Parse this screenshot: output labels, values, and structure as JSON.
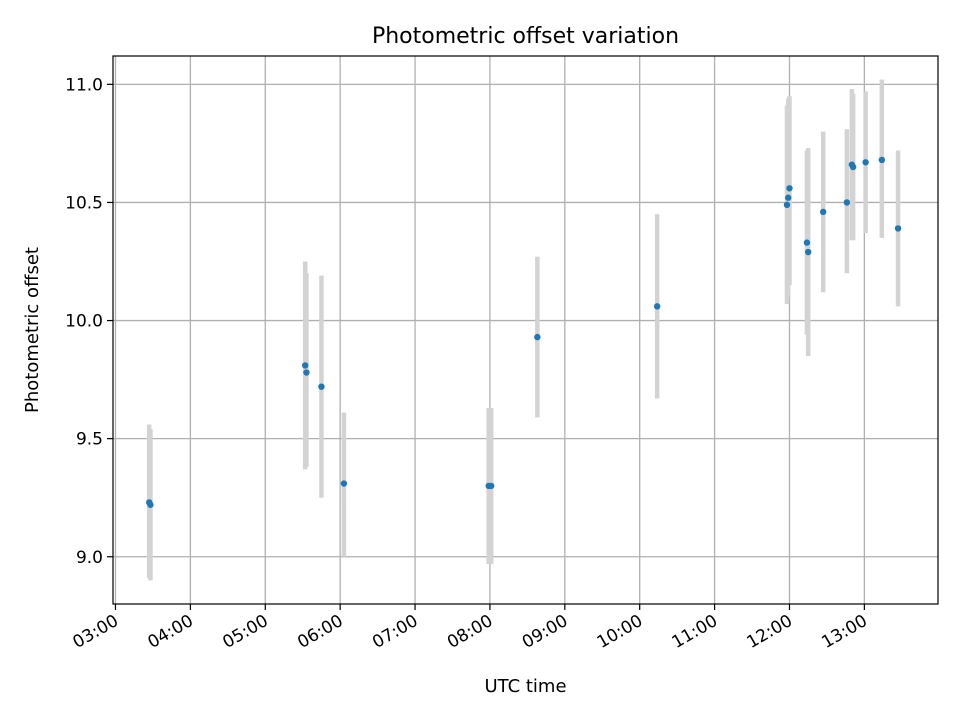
{
  "chart_data": {
    "type": "scatter",
    "title": "Photometric offset variation",
    "xlabel": "UTC time",
    "ylabel": "Photometric offset",
    "xlim": [
      "02:58",
      "13:59"
    ],
    "ylim": [
      8.8,
      11.12
    ],
    "x_ticks": [
      "03:00",
      "04:00",
      "05:00",
      "06:00",
      "07:00",
      "08:00",
      "09:00",
      "10:00",
      "11:00",
      "12:00",
      "13:00"
    ],
    "y_ticks": [
      "9.0",
      "9.5",
      "10.0",
      "10.5",
      "11.0"
    ],
    "grid": true,
    "marker_color": "#1f77b4",
    "errorbar_color": "#d3d3d3",
    "points": [
      {
        "time": "03:27",
        "y": 9.23,
        "lo": 8.91,
        "hi": 9.56
      },
      {
        "time": "03:28",
        "y": 9.22,
        "lo": 8.9,
        "hi": 9.54
      },
      {
        "time": "05:32",
        "y": 9.81,
        "lo": 9.37,
        "hi": 10.25
      },
      {
        "time": "05:33",
        "y": 9.78,
        "lo": 9.38,
        "hi": 10.2
      },
      {
        "time": "05:45",
        "y": 9.72,
        "lo": 9.25,
        "hi": 10.19
      },
      {
        "time": "06:03",
        "y": 9.31,
        "lo": 9.0,
        "hi": 9.61
      },
      {
        "time": "07:59",
        "y": 9.3,
        "lo": 8.97,
        "hi": 9.63
      },
      {
        "time": "08:01",
        "y": 9.3,
        "lo": 8.97,
        "hi": 9.63
      },
      {
        "time": "08:38",
        "y": 9.93,
        "lo": 9.59,
        "hi": 10.27
      },
      {
        "time": "10:14",
        "y": 10.06,
        "lo": 9.67,
        "hi": 10.45
      },
      {
        "time": "11:58",
        "y": 10.49,
        "lo": 10.07,
        "hi": 10.91
      },
      {
        "time": "11:59",
        "y": 10.52,
        "lo": 10.1,
        "hi": 10.94
      },
      {
        "time": "12:00",
        "y": 10.56,
        "lo": 10.15,
        "hi": 10.95
      },
      {
        "time": "12:14",
        "y": 10.33,
        "lo": 9.94,
        "hi": 10.72
      },
      {
        "time": "12:15",
        "y": 10.29,
        "lo": 9.85,
        "hi": 10.73
      },
      {
        "time": "12:27",
        "y": 10.46,
        "lo": 10.12,
        "hi": 10.8
      },
      {
        "time": "12:46",
        "y": 10.5,
        "lo": 10.2,
        "hi": 10.81
      },
      {
        "time": "12:50",
        "y": 10.66,
        "lo": 10.34,
        "hi": 10.98
      },
      {
        "time": "12:51",
        "y": 10.65,
        "lo": 10.34,
        "hi": 10.96
      },
      {
        "time": "13:01",
        "y": 10.67,
        "lo": 10.37,
        "hi": 10.97
      },
      {
        "time": "13:14",
        "y": 10.68,
        "lo": 10.35,
        "hi": 11.02
      },
      {
        "time": "13:27",
        "y": 10.39,
        "lo": 10.06,
        "hi": 10.72
      }
    ]
  }
}
